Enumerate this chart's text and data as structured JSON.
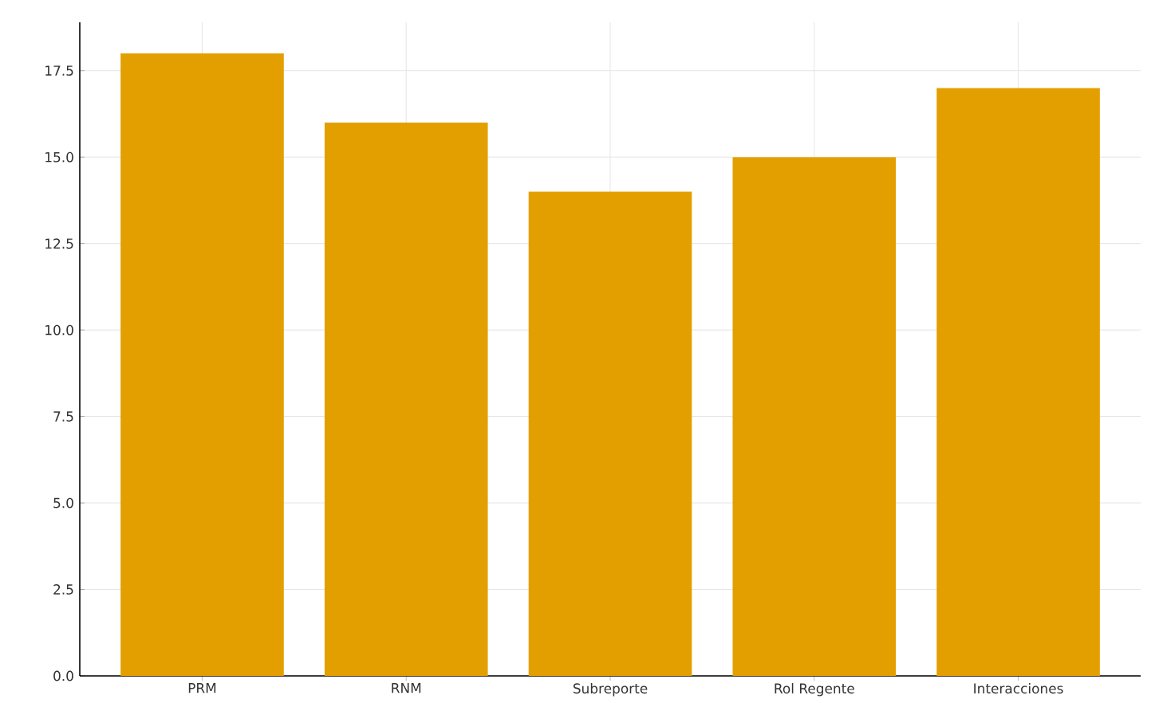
{
  "chart_data": {
    "type": "bar",
    "categories": [
      "PRM",
      "RNM",
      "Subreporte",
      "Rol Regente",
      "Interacciones"
    ],
    "values": [
      18,
      16,
      14,
      15,
      17
    ],
    "color": "#e39f00",
    "ylim": [
      0,
      18.9
    ],
    "yticks": [
      {
        "value": 0,
        "label": "0.0"
      },
      {
        "value": 2.5,
        "label": "2.5"
      },
      {
        "value": 5,
        "label": "5.0"
      },
      {
        "value": 7.5,
        "label": "7.5"
      },
      {
        "value": 10,
        "label": "10.0"
      },
      {
        "value": 12.5,
        "label": "12.5"
      },
      {
        "value": 15,
        "label": "15.0"
      },
      {
        "value": 17.5,
        "label": "17.5"
      }
    ],
    "grid": true
  }
}
